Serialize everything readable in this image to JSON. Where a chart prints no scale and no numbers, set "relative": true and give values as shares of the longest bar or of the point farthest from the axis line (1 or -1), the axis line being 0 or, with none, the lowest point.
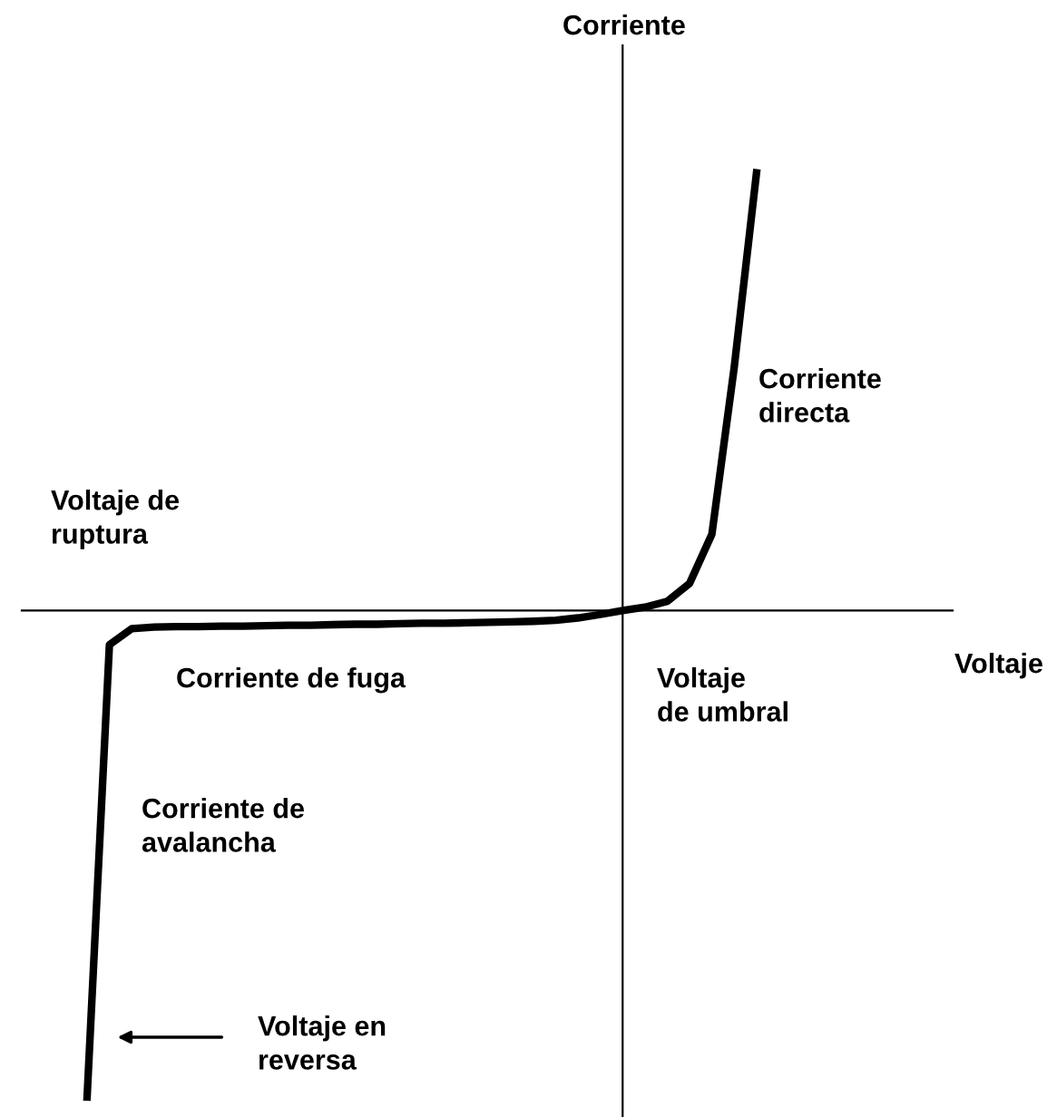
{
  "chart_data": {
    "type": "line",
    "relative": true,
    "categories": [
      null,
      null,
      null,
      null,
      null,
      null,
      null,
      null,
      null,
      null,
      null,
      null,
      null,
      null,
      null,
      null,
      null,
      null,
      null,
      null,
      null,
      null,
      null,
      null,
      null,
      null,
      null,
      null,
      null,
      null,
      null
    ],
    "series": [
      {
        "color": "#000000",
        "values": [
          -1,
          -0.07,
          -0.037,
          -0.034,
          -0.033,
          -0.033,
          -0.032,
          -0.032,
          -0.031,
          -0.03,
          -0.03,
          -0.029,
          -0.028,
          -0.028,
          -0.027,
          -0.026,
          -0.026,
          -0.025,
          -0.024,
          -0.023,
          -0.022,
          -0.02,
          -0.015,
          -0.008,
          0,
          0.007,
          0.019,
          0.056,
          0.157,
          0.5,
          0.9
        ]
      }
    ],
    "annotations": [
      "Voltaje",
      "Corriente",
      "Corriente\ndirecta",
      "Voltaje de\nruptura",
      "Corriente de fuga",
      "Voltaje\nde umbral",
      "Corriente de\navalancha",
      "Voltaje en\nreversa"
    ],
    "grid": false,
    "legend": false,
    "marker": "none",
    "line_style": "solid"
  }
}
